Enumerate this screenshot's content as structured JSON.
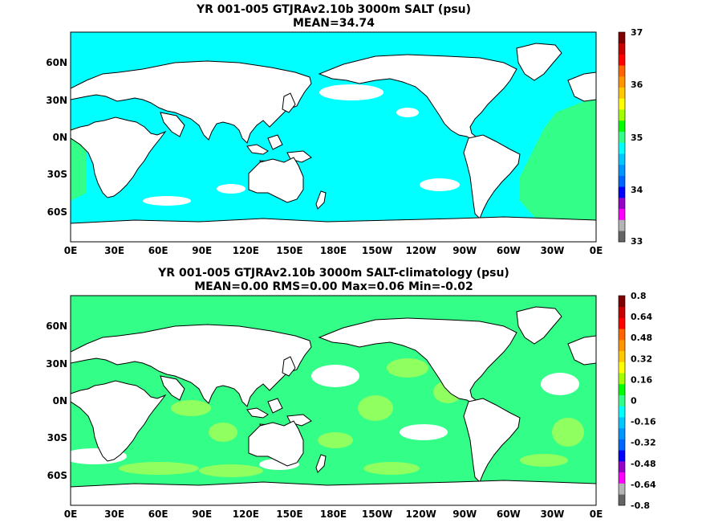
{
  "panels": [
    {
      "title_line1": "YR 001-005 GTJRAv2.10b 3000m SALT (psu)",
      "title_line2": "MEAN=34.74",
      "base_color": "#00ffff",
      "accent_color": "#33ff88",
      "colorbar": {
        "colors": [
          "#646464",
          "#b4b4b4",
          "#ff00ff",
          "#9600c8",
          "#0000ff",
          "#0064ff",
          "#0096ff",
          "#00c8ff",
          "#00ffff",
          "#33ff88",
          "#00ff00",
          "#a0ff00",
          "#ffff00",
          "#ffc800",
          "#ff9600",
          "#ff6400",
          "#ff0000",
          "#c80000",
          "#800000"
        ],
        "tick_labels": [
          "37",
          "36",
          "35",
          "34",
          "33"
        ]
      }
    },
    {
      "title_line1": "YR 001-005 GTJRAv2.10b 3000m SALT-climatology (psu)",
      "title_line2": "MEAN=0.00   RMS=0.00   Max=0.06   Min=-0.02",
      "base_color": "#33ff88",
      "accent_color": "#90ff60",
      "colorbar": {
        "colors": [
          "#646464",
          "#b4b4b4",
          "#ff00ff",
          "#9600c8",
          "#0000ff",
          "#0064ff",
          "#0096ff",
          "#00c8ff",
          "#00ffff",
          "#33ff88",
          "#00ff00",
          "#a0ff00",
          "#ffff00",
          "#ffc800",
          "#ff9600",
          "#ff6400",
          "#ff0000",
          "#c80000",
          "#800000"
        ],
        "tick_labels": [
          "0.8",
          "0.64",
          "0.48",
          "0.32",
          "0.16",
          "0",
          "-0.16",
          "-0.32",
          "-0.48",
          "-0.64",
          "-0.8"
        ]
      }
    }
  ],
  "x_tick_labels": [
    "0E",
    "30E",
    "60E",
    "90E",
    "120E",
    "150E",
    "180E",
    "150W",
    "120W",
    "90W",
    "60W",
    "30W",
    "0E"
  ],
  "y_tick_labels": [
    "60N",
    "30N",
    "0N",
    "30S",
    "60S"
  ]
}
